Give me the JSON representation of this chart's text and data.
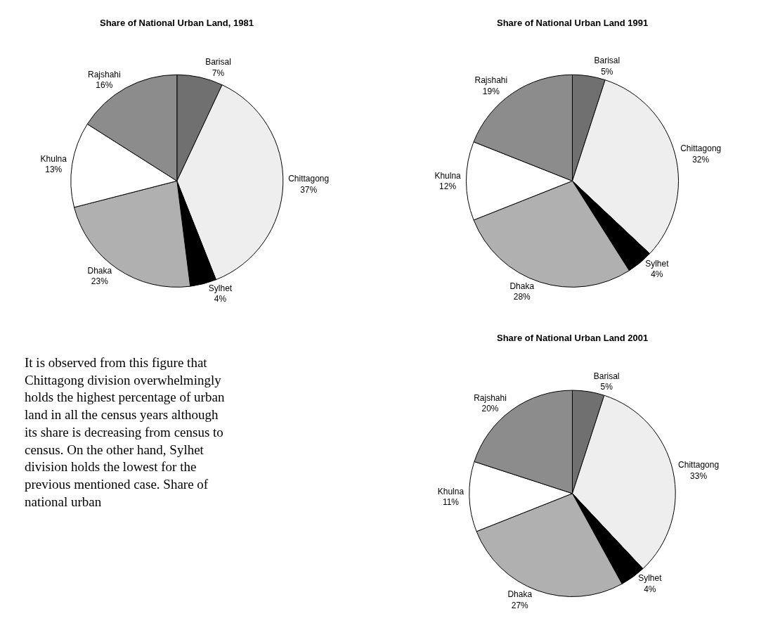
{
  "chart_data": [
    {
      "type": "pie",
      "title": "Share of National Urban Land, 1981",
      "categories": [
        "Barisal",
        "Chittagong",
        "Sylhet",
        "Dhaka",
        "Khulna",
        "Rajshahi"
      ],
      "values": [
        7,
        37,
        4,
        23,
        13,
        16
      ],
      "value_labels": [
        "7%",
        "37%",
        "4%",
        "23%",
        "13%",
        "16%"
      ],
      "colors": [
        "#707070",
        "#eeeeee",
        "#000000",
        "#b0b0b0",
        "#ffffff",
        "#8c8c8c"
      ]
    },
    {
      "type": "pie",
      "title": "Share of National Urban Land 1991",
      "categories": [
        "Barisal",
        "Chittagong",
        "Sylhet",
        "Dhaka",
        "Khulna",
        "Rajshahi"
      ],
      "values": [
        5,
        32,
        4,
        28,
        12,
        19
      ],
      "value_labels": [
        "5%",
        "32%",
        "4%",
        "28%",
        "12%",
        "19%"
      ],
      "colors": [
        "#707070",
        "#eeeeee",
        "#000000",
        "#b0b0b0",
        "#ffffff",
        "#8c8c8c"
      ]
    },
    {
      "type": "other",
      "annotations": [
        "It is observed from this figure that Chittagong division overwhelmingly holds the highest percentage of urban land in all the census years although its share is decreasing from census to census. On the other hand, Sylhet division holds the lowest for the previous mentioned case. Share of national urban"
      ]
    },
    {
      "type": "pie",
      "title": "Share of National Urban Land 2001",
      "categories": [
        "Barisal",
        "Chittagong",
        "Sylhet",
        "Dhaka",
        "Khulna",
        "Rajshahi"
      ],
      "values": [
        5,
        33,
        4,
        27,
        11,
        20
      ],
      "value_labels": [
        "5%",
        "33%",
        "4%",
        "27%",
        "11%",
        "20%"
      ],
      "colors": [
        "#707070",
        "#eeeeee",
        "#000000",
        "#b0b0b0",
        "#ffffff",
        "#8c8c8c"
      ]
    }
  ]
}
